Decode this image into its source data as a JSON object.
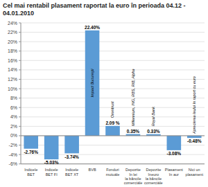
{
  "chart_data": {
    "type": "bar",
    "title": "Cel mai rentabil plasament raportat la euro în perioada 04.12 - 04.01.2010",
    "categories": [
      "Indicele\nBET",
      "Indicele\nBET FI",
      "Indicele\nBET XT",
      "BVB",
      "Fonduri\nmutuále",
      "Depozite\nîn lei\nla băncile\ncomerciále",
      "Depozite\nîneuro\nla băncile\ncomerciále",
      "Plasament\nîn aur",
      "Nici un\nplasament"
    ],
    "values": [
      -2.76,
      -5.03,
      -3.74,
      22.4,
      2.09,
      0.35,
      0.33,
      -3.08,
      -0.48
    ],
    "value_labels": [
      "-2.76%",
      "-5.03%",
      "-3.74%",
      "22.40%",
      "2.09 %",
      "0.35%",
      "0.33%",
      "-3.08%",
      "-0.48%"
    ],
    "data_labels": true,
    "bar_labels": [
      null,
      null,
      null,
      "Impact Bucureşti",
      "Omnitrust",
      "Millennium, ING, RBS, RIB, Alpha",
      "Royal Bank",
      null,
      "Aprecierea leului în raport cu euro"
    ],
    "color": "#5b9bd5",
    "ylim": [
      -6,
      24
    ],
    "yticks": [
      {
        "value": -6,
        "label": "-6%"
      },
      {
        "value": -4,
        "label": "-4%"
      },
      {
        "value": -2,
        "label": "-2%"
      },
      {
        "value": 0,
        "label": "0%"
      },
      {
        "value": 2,
        "label": "2%"
      },
      {
        "value": 4,
        "label": "4%"
      },
      {
        "value": 6,
        "label": "6%"
      },
      {
        "value": 8,
        "label": "8%"
      },
      {
        "value": 10,
        "label": "10%"
      },
      {
        "value": 12,
        "label": "12%"
      },
      {
        "value": 14,
        "label": "14%"
      },
      {
        "value": 16,
        "label": "16%"
      },
      {
        "value": 18,
        "label": "18%"
      },
      {
        "value": 20,
        "label": "20%"
      },
      {
        "value": 22,
        "label": "22%"
      },
      {
        "value": 24,
        "label": "24%"
      }
    ],
    "grid": true
  }
}
